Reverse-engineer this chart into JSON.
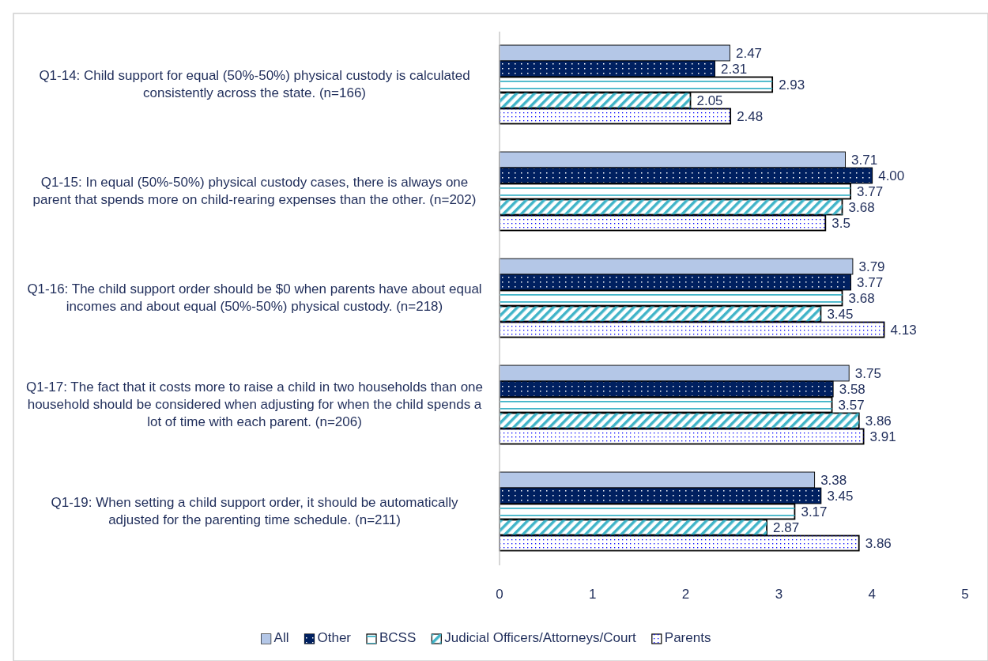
{
  "chart_data": {
    "type": "bar",
    "orientation": "horizontal",
    "categories": [
      "Q1-14: Child support for equal (50%-50%) physical custody is calculated consistently across the state. (n=166)",
      "Q1-15: In equal (50%-50%) physical custody cases, there is always one parent that spends more on child-rearing expenses than the other. (n=202)",
      "Q1-16: The child support order should be $0 when parents have about equal incomes and about equal (50%-50%) physical custody. (n=218)",
      "Q1-17: The fact that it costs more to raise a child in two households than one household should be considered when adjusting for when the child spends a lot of time with each parent. (n=206)",
      "Q1-19: When setting a child support order, it should be automatically adjusted for the parenting time schedule. (n=211)"
    ],
    "series": [
      {
        "name": "All",
        "color": "#b4c7e7",
        "values": [
          2.47,
          3.71,
          3.79,
          3.75,
          3.38
        ],
        "value_labels": [
          "2.47",
          "3.71",
          "3.79",
          "3.75",
          "3.38"
        ]
      },
      {
        "name": "Other",
        "color": "#002060",
        "values": [
          2.31,
          4.0,
          3.77,
          3.58,
          3.45
        ],
        "value_labels": [
          "2.31",
          "4.00",
          "3.77",
          "3.58",
          "3.45"
        ]
      },
      {
        "name": "BCSS",
        "color": "#40b4c8",
        "values": [
          2.93,
          3.77,
          3.68,
          3.57,
          3.17
        ],
        "value_labels": [
          "2.93",
          "3.77",
          "3.68",
          "3.57",
          "3.17"
        ]
      },
      {
        "name": "Judicial Officers/Attorneys/Court",
        "color": "#40b4c8",
        "values": [
          2.05,
          3.68,
          3.45,
          3.86,
          2.87
        ],
        "value_labels": [
          "2.05",
          "3.68",
          "3.45",
          "3.86",
          "2.87"
        ]
      },
      {
        "name": "Parents",
        "color": "#0000ff",
        "values": [
          2.48,
          3.5,
          4.13,
          3.91,
          3.86
        ],
        "value_labels": [
          "2.48",
          "3.5",
          "4.13",
          "3.91",
          "3.86"
        ]
      }
    ],
    "xlim": [
      0,
      5
    ],
    "xticks": [
      0,
      1,
      2,
      3,
      4,
      5
    ],
    "grid": false,
    "legend": "bottom"
  }
}
